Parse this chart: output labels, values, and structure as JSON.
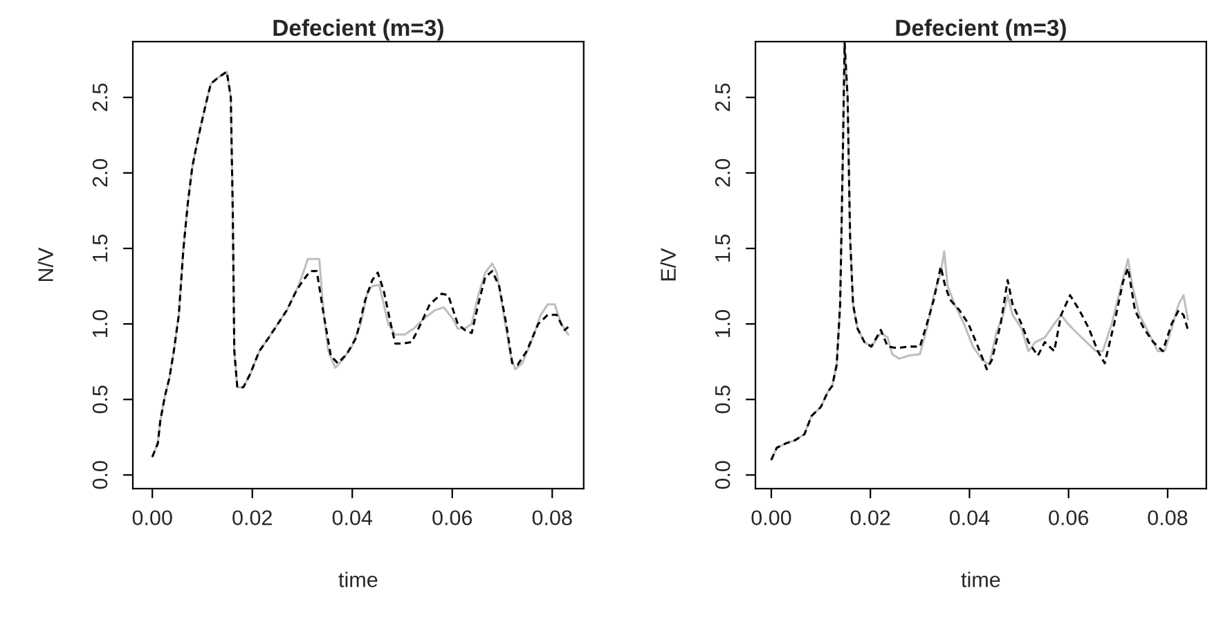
{
  "chart_data": [
    {
      "type": "line",
      "title": "Defecient (m=3)",
      "xlabel": "time",
      "ylabel": "N/V",
      "xlim": [
        -0.0039,
        0.0863
      ],
      "ylim": [
        -0.09,
        2.87
      ],
      "xticks": [
        {
          "value": 0,
          "label": "0.00"
        },
        {
          "value": 0.02,
          "label": "0.02"
        },
        {
          "value": 0.04,
          "label": "0.04"
        },
        {
          "value": 0.06,
          "label": "0.06"
        },
        {
          "value": 0.08,
          "label": "0.08"
        }
      ],
      "yticks": [
        {
          "value": 0,
          "label": "0.0"
        },
        {
          "value": 0.5,
          "label": "0.5"
        },
        {
          "value": 1,
          "label": "1.0"
        },
        {
          "value": 1.5,
          "label": "1.5"
        },
        {
          "value": 2,
          "label": "2.0"
        },
        {
          "value": 2.5,
          "label": "2.5"
        }
      ],
      "series": [
        {
          "color": "#000000",
          "line_style": "dashed",
          "x": [
            0,
            0.0011,
            0.0016,
            0.0025,
            0.0034,
            0.0043,
            0.0053,
            0.0062,
            0.0071,
            0.008,
            0.0089,
            0.0099,
            0.0108,
            0.0117,
            0.0131,
            0.0149,
            0.0157,
            0.0161,
            0.0164,
            0.017,
            0.0182,
            0.0196,
            0.0214,
            0.0233,
            0.0251,
            0.0269,
            0.0288,
            0.0302,
            0.0316,
            0.0329,
            0.0343,
            0.0357,
            0.0371,
            0.0389,
            0.0408,
            0.0426,
            0.044,
            0.0451,
            0.0463,
            0.0477,
            0.0486,
            0.05,
            0.0519,
            0.0537,
            0.0555,
            0.0579,
            0.0592,
            0.0611,
            0.0625,
            0.0639,
            0.0652,
            0.0666,
            0.068,
            0.0694,
            0.0708,
            0.072,
            0.0731,
            0.0749,
            0.0772,
            0.0791,
            0.0809,
            0.0818,
            0.0825,
            0.0832
          ],
          "values": [
            0.12,
            0.21,
            0.36,
            0.52,
            0.64,
            0.82,
            1.06,
            1.49,
            1.8,
            2.04,
            2.19,
            2.34,
            2.47,
            2.59,
            2.63,
            2.67,
            2.5,
            1.73,
            0.82,
            0.58,
            0.58,
            0.67,
            0.82,
            0.91,
            1.0,
            1.09,
            1.22,
            1.29,
            1.35,
            1.35,
            1.06,
            0.79,
            0.74,
            0.8,
            0.91,
            1.16,
            1.29,
            1.34,
            1.22,
            1.0,
            0.87,
            0.87,
            0.88,
            1.0,
            1.13,
            1.2,
            1.19,
            1.0,
            0.96,
            0.94,
            1.13,
            1.31,
            1.35,
            1.25,
            1.0,
            0.74,
            0.73,
            0.82,
            1.0,
            1.06,
            1.06,
            1.0,
            0.96,
            0.98
          ]
        },
        {
          "color": "#bebebe",
          "line_style": "solid",
          "x": [
            0,
            0.0011,
            0.0016,
            0.0025,
            0.0034,
            0.0043,
            0.0053,
            0.0062,
            0.0071,
            0.008,
            0.0089,
            0.0099,
            0.0108,
            0.0117,
            0.0131,
            0.0149,
            0.0157,
            0.0161,
            0.0164,
            0.017,
            0.0182,
            0.0196,
            0.0214,
            0.0233,
            0.0251,
            0.0269,
            0.0288,
            0.0302,
            0.0311,
            0.0325,
            0.0334,
            0.0343,
            0.0352,
            0.0366,
            0.038,
            0.0399,
            0.0417,
            0.0431,
            0.044,
            0.0454,
            0.0472,
            0.0486,
            0.0505,
            0.0523,
            0.0542,
            0.0565,
            0.0583,
            0.0602,
            0.0611,
            0.0625,
            0.0639,
            0.0652,
            0.0666,
            0.068,
            0.0689,
            0.0703,
            0.0717,
            0.0726,
            0.074,
            0.0758,
            0.0777,
            0.0791,
            0.0805,
            0.0818,
            0.0832
          ],
          "values": [
            0.12,
            0.21,
            0.36,
            0.52,
            0.64,
            0.82,
            1.06,
            1.49,
            1.8,
            2.04,
            2.19,
            2.34,
            2.47,
            2.59,
            2.63,
            2.67,
            2.5,
            1.73,
            0.82,
            0.58,
            0.58,
            0.67,
            0.82,
            0.91,
            1.0,
            1.09,
            1.22,
            1.34,
            1.43,
            1.43,
            1.43,
            1.06,
            0.82,
            0.71,
            0.76,
            0.85,
            1.0,
            1.22,
            1.25,
            1.26,
            1.0,
            0.93,
            0.93,
            0.97,
            1.03,
            1.09,
            1.11,
            1.03,
            0.97,
            0.97,
            1.0,
            1.19,
            1.34,
            1.4,
            1.34,
            1.06,
            0.79,
            0.7,
            0.74,
            0.88,
            1.06,
            1.13,
            1.13,
            1.0,
            0.93
          ]
        }
      ]
    },
    {
      "type": "line",
      "title": "Defecient (m=3)",
      "xlabel": "time",
      "ylabel": "E/V",
      "xlim": [
        -0.0032,
        0.0878
      ],
      "ylim": [
        -0.09,
        2.87
      ],
      "xticks": [
        {
          "value": 0,
          "label": "0.00"
        },
        {
          "value": 0.02,
          "label": "0.02"
        },
        {
          "value": 0.04,
          "label": "0.04"
        },
        {
          "value": 0.06,
          "label": "0.06"
        },
        {
          "value": 0.08,
          "label": "0.08"
        }
      ],
      "yticks": [
        {
          "value": 0,
          "label": "0.0"
        },
        {
          "value": 0.5,
          "label": "0.5"
        },
        {
          "value": 1,
          "label": "1.0"
        },
        {
          "value": 1.5,
          "label": "1.5"
        },
        {
          "value": 2,
          "label": "2.0"
        },
        {
          "value": 2.5,
          "label": "2.5"
        }
      ],
      "series": [
        {
          "color": "#000000",
          "line_style": "dashed",
          "x": [
            0,
            0.0011,
            0.003,
            0.0048,
            0.0067,
            0.0081,
            0.01,
            0.0114,
            0.0123,
            0.0132,
            0.0139,
            0.0144,
            0.0148,
            0.0154,
            0.0159,
            0.0165,
            0.0174,
            0.0188,
            0.0202,
            0.0221,
            0.0235,
            0.0254,
            0.0277,
            0.03,
            0.0314,
            0.0328,
            0.0342,
            0.0351,
            0.0361,
            0.038,
            0.0398,
            0.0417,
            0.0435,
            0.0445,
            0.0463,
            0.0477,
            0.0487,
            0.0505,
            0.0519,
            0.0538,
            0.0552,
            0.0571,
            0.0585,
            0.0603,
            0.0622,
            0.0641,
            0.0659,
            0.0673,
            0.0692,
            0.071,
            0.072,
            0.0734,
            0.0752,
            0.0771,
            0.079,
            0.0808,
            0.0822,
            0.0832,
            0.0841
          ],
          "values": [
            0.1,
            0.18,
            0.21,
            0.23,
            0.27,
            0.39,
            0.45,
            0.55,
            0.59,
            0.73,
            1.13,
            2.04,
            2.86,
            2.5,
            1.58,
            1.13,
            0.97,
            0.88,
            0.85,
            0.96,
            0.85,
            0.84,
            0.85,
            0.85,
            1.0,
            1.16,
            1.38,
            1.25,
            1.16,
            1.09,
            1.0,
            0.85,
            0.7,
            0.76,
            1.0,
            1.29,
            1.13,
            1.0,
            0.88,
            0.79,
            0.88,
            0.82,
            1.06,
            1.19,
            1.09,
            0.97,
            0.82,
            0.74,
            1.0,
            1.28,
            1.37,
            1.09,
            0.97,
            0.88,
            0.82,
            1.0,
            1.09,
            1.06,
            0.96
          ]
        },
        {
          "color": "#bebebe",
          "line_style": "solid",
          "x": [
            0,
            0.0011,
            0.003,
            0.0048,
            0.0067,
            0.0081,
            0.01,
            0.0114,
            0.0123,
            0.0132,
            0.0139,
            0.0144,
            0.0148,
            0.0154,
            0.0159,
            0.0165,
            0.0174,
            0.0188,
            0.0202,
            0.0221,
            0.0235,
            0.0244,
            0.0258,
            0.0277,
            0.03,
            0.0314,
            0.0328,
            0.0342,
            0.0349,
            0.0356,
            0.037,
            0.0389,
            0.0407,
            0.0426,
            0.044,
            0.0454,
            0.0468,
            0.0477,
            0.0487,
            0.0505,
            0.0519,
            0.0533,
            0.0552,
            0.0571,
            0.0585,
            0.0599,
            0.0617,
            0.0636,
            0.0655,
            0.0669,
            0.0687,
            0.0706,
            0.072,
            0.0729,
            0.0743,
            0.0762,
            0.078,
            0.0794,
            0.0808,
            0.0822,
            0.0832,
            0.0841
          ],
          "values": [
            0.1,
            0.18,
            0.21,
            0.23,
            0.27,
            0.39,
            0.45,
            0.55,
            0.59,
            0.73,
            1.13,
            2.04,
            2.86,
            2.5,
            1.58,
            1.13,
            0.97,
            0.88,
            0.85,
            0.94,
            0.91,
            0.8,
            0.77,
            0.79,
            0.8,
            0.97,
            1.19,
            1.34,
            1.48,
            1.25,
            1.13,
            1.0,
            0.85,
            0.76,
            0.73,
            0.94,
            1.06,
            1.19,
            1.06,
            0.97,
            0.82,
            0.88,
            0.91,
            1.0,
            1.06,
            1.0,
            0.94,
            0.88,
            0.82,
            0.82,
            1.0,
            1.25,
            1.43,
            1.25,
            1.06,
            0.94,
            0.82,
            0.82,
            0.97,
            1.13,
            1.19,
            1.03
          ]
        }
      ]
    }
  ]
}
